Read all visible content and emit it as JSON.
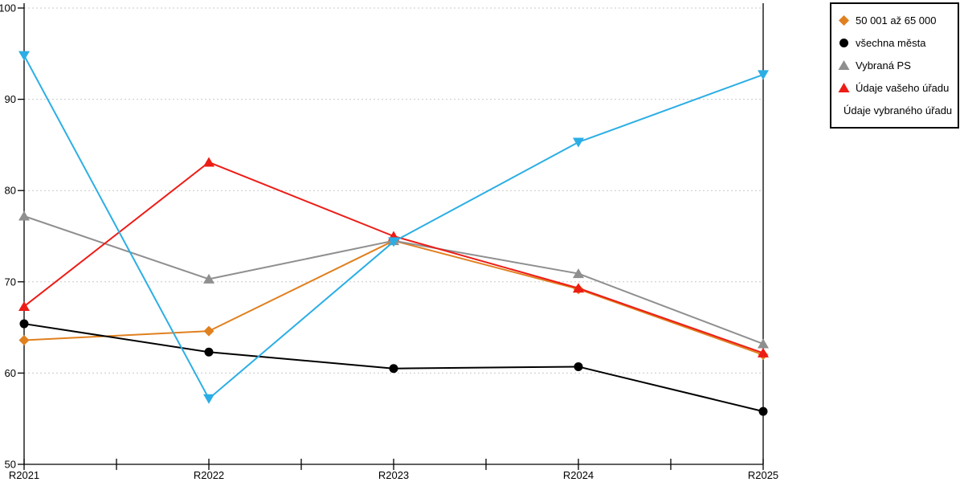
{
  "chart_data": {
    "type": "line",
    "title": "",
    "xlabel": "",
    "ylabel": "",
    "categories": [
      "R2021",
      "R2022",
      "R2023",
      "R2024",
      "R2025"
    ],
    "series": [
      {
        "name": "50 001 až 65 000",
        "color": "#E0801F",
        "marker": "diamond",
        "values": [
          63.6,
          64.6,
          74.5,
          69.2,
          62.0
        ]
      },
      {
        "name": "všechna města",
        "color": "#000000",
        "marker": "circle",
        "values": [
          65.4,
          62.3,
          60.5,
          60.7,
          55.8
        ]
      },
      {
        "name": "Vybraná PS",
        "color": "#8F8F8F",
        "marker": "triangle-up",
        "values": [
          77.2,
          70.3,
          74.5,
          70.9,
          63.2
        ]
      },
      {
        "name": "Údaje vašeho úřadu",
        "color": "#ED1C16",
        "marker": "triangle-up",
        "values": [
          67.3,
          83.1,
          75.0,
          69.3,
          62.2
        ]
      },
      {
        "name": "Údaje vybraného úřadu",
        "color": "#2BAEE5",
        "marker": "triangle-down",
        "values": [
          94.8,
          57.2,
          74.4,
          85.3,
          92.7
        ]
      }
    ],
    "ylim": [
      50,
      100
    ],
    "yticks": [
      50,
      60,
      70,
      80,
      90,
      100
    ],
    "grid": "horizontal-dotted",
    "legend_position": "top-right"
  },
  "colors": {
    "grid": "#C9C9C9",
    "axis": "#000000",
    "background": "#FFFFFF",
    "legend_border": "#000000"
  }
}
